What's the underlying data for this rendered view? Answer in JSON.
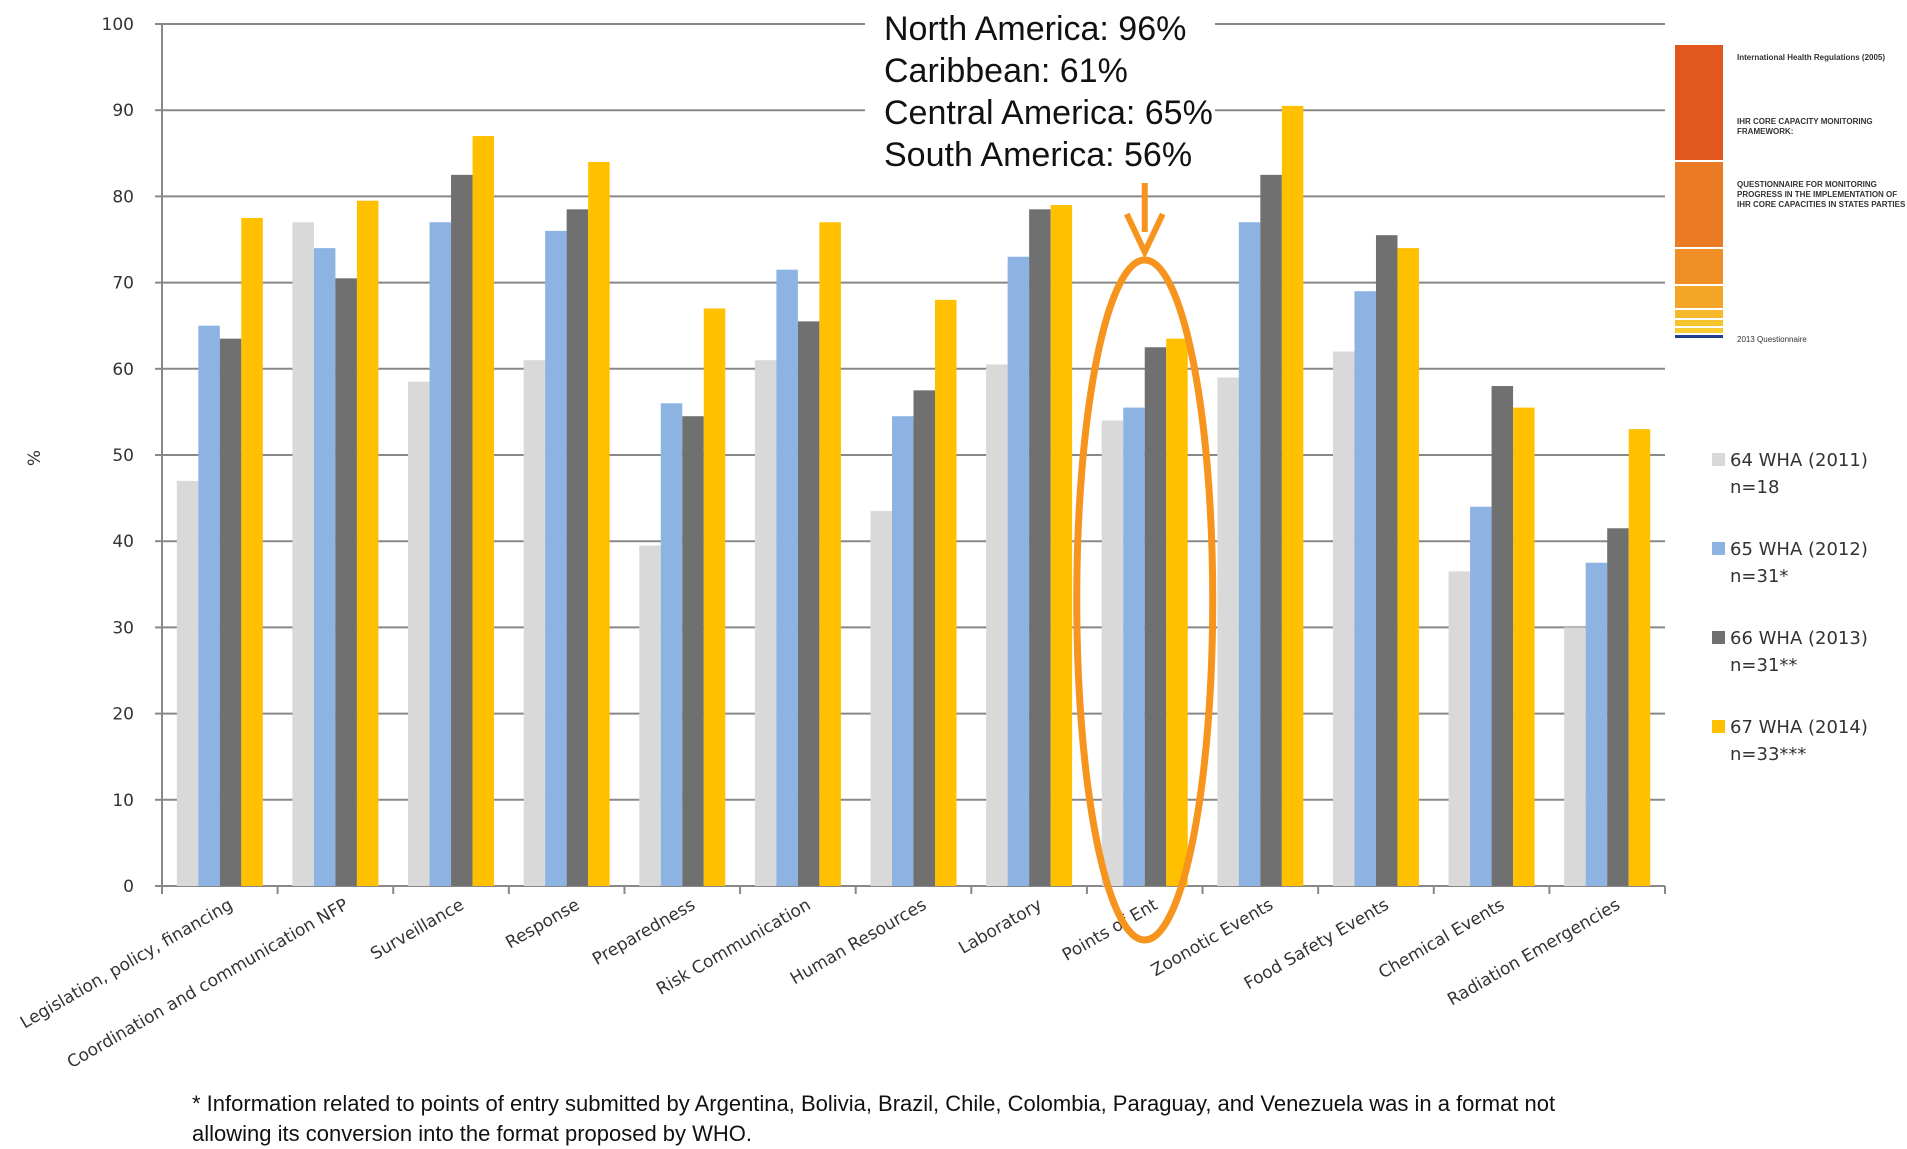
{
  "colors": {
    "s2011": "#d9d9d9",
    "s2012": "#8db3e2",
    "s2013": "#707070",
    "s2014": "#ffc000",
    "highlight": "#f7941d",
    "axis": "#888888"
  },
  "chart_data": {
    "type": "bar",
    "title": "",
    "xlabel": "",
    "ylabel": "%",
    "ylim": [
      0,
      100
    ],
    "yticks": [
      0,
      10,
      20,
      30,
      40,
      50,
      60,
      70,
      80,
      90,
      100
    ],
    "ytick_labels": [
      "0",
      "10",
      "20",
      "30",
      "40",
      "50",
      "60",
      "70",
      "80",
      "90",
      "100"
    ],
    "grid": true,
    "legend_position": "right",
    "categories": [
      "Legislation, policy, financing",
      "Coordination and communication NFP",
      "Surveillance",
      "Response",
      "Preparedness",
      "Risk Communication",
      "Human Resources",
      "Laboratory",
      "Points of Entry",
      "Zoonotic Events",
      "Food Safety Events",
      "Chemical Events",
      "Radiation Emergencies"
    ],
    "category_labels": [
      "Legislation, policy, financing",
      "Coordination and communication NFP",
      "Surveillance",
      "Response",
      "Preparedness",
      "Risk Communication",
      "Human Resources",
      "Laboratory",
      "Points of Ent",
      "Zoonotic Events",
      "Food Safety Events",
      "Chemical Events",
      "Radiation Emergencies"
    ],
    "series": [
      {
        "name": "64 WHA (2011) n=18",
        "legend_lines": [
          "64 WHA (2011)",
          "n=18"
        ],
        "values": [
          47,
          77,
          58.5,
          61,
          39.5,
          61,
          43.5,
          60.5,
          54,
          59,
          62,
          36.5,
          30
        ]
      },
      {
        "name": "65 WHA (2012) n=31*",
        "legend_lines": [
          "65 WHA (2012)",
          "n=31*"
        ],
        "values": [
          65,
          74,
          77,
          76,
          56,
          71.5,
          54.5,
          73,
          55.5,
          77,
          69,
          44,
          37.5
        ]
      },
      {
        "name": "66 WHA (2013) n=31**",
        "legend_lines": [
          "66 WHA (2013)",
          "n=31**"
        ],
        "values": [
          63.5,
          70.5,
          82.5,
          78.5,
          54.5,
          65.5,
          57.5,
          78.5,
          62.5,
          82.5,
          75.5,
          58,
          41.5
        ]
      },
      {
        "name": "67 WHA (2014) n=33***",
        "legend_lines": [
          "67 WHA (2014)",
          "n=33***"
        ],
        "values": [
          77.5,
          79.5,
          87,
          84,
          67,
          77,
          68,
          79,
          63.5,
          90.5,
          74,
          55.5,
          53
        ]
      }
    ],
    "annotation": {
      "lines": [
        "North America: 96%",
        "Caribbean: 61%",
        "Central America: 65%",
        "South America: 56%"
      ],
      "highlighted_category": "Points of Entry"
    }
  },
  "thumbnail": {
    "title": "International Health Regulations (2005)",
    "subtitle": "IHR CORE CAPACITY MONITORING FRAMEWORK:",
    "body": "QUESTIONNAIRE FOR MONITORING PROGRESS IN THE IMPLEMENTATION OF IHR CORE CAPACITIES IN STATES PARTIES",
    "footer": "2013 Questionnaire"
  },
  "footnote": {
    "lines": [
      "* Information related to points of entry submitted by Argentina, Bolivia, Brazil, Chile, Colombia, Paraguay, and Venezuela was in a format not",
      "allowing its conversion into the format proposed by WHO."
    ]
  }
}
